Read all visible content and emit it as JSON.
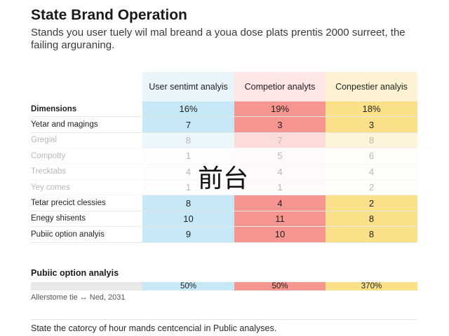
{
  "title": "State Brand Operation",
  "subtitle": "Stands you user tuely wil mal breand a youa dose plats prentis 2000 surreet, the failing arguraning.",
  "columns": [
    "User sentimt analyis",
    "Competior analyts",
    "Conpestier analyis"
  ],
  "rows": [
    {
      "label": "Dimensions",
      "values": [
        "16%",
        "19%",
        "18%"
      ]
    },
    {
      "label": "Yetar and magings",
      "values": [
        "7",
        "3",
        "3"
      ]
    },
    {
      "label": "Gregial",
      "values": [
        "8",
        "7",
        "8"
      ]
    },
    {
      "label": "Compotty",
      "values": [
        "1",
        "5",
        "6"
      ]
    },
    {
      "label": "Trecktabs",
      "values": [
        "4",
        "4",
        "4"
      ]
    },
    {
      "label": "Yey comes",
      "values": [
        "1",
        "1",
        "2"
      ]
    },
    {
      "label": "Tetar precict clessies",
      "values": [
        "8",
        "4",
        "2"
      ]
    },
    {
      "label": "Enegy shisents",
      "values": [
        "10",
        "11",
        "8"
      ]
    },
    {
      "label": "Pubiic option analyis",
      "values": [
        "9",
        "10",
        "8"
      ]
    }
  ],
  "overlay_text": "前台",
  "summary": {
    "title": "Pubiic option analyis",
    "values": [
      "50%",
      "50%",
      "370%"
    ],
    "caption": "Allerstome tie ↔ Ned, 2031"
  },
  "footer": "State the catorcy of hour mands centcencial in Public analyses."
}
